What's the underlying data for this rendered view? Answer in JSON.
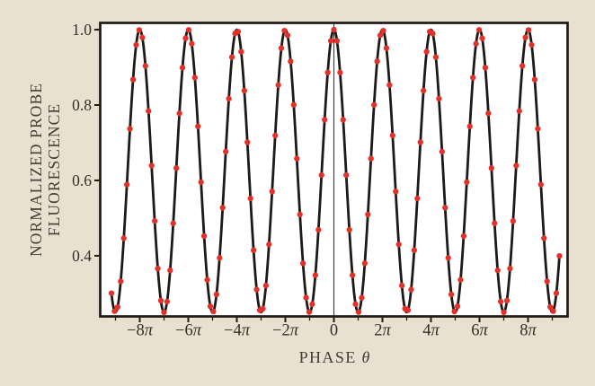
{
  "figure": {
    "background_color": "#eae0cf",
    "plot_background": "#ffffff",
    "frame_color": "#1d1a16",
    "curve_color": "#1d1a16",
    "dot_color": "#e43028",
    "zero_line_color": "#3a3733",
    "text_color": "#423d34",
    "tick_label_color": "#332e27"
  },
  "chart_data": {
    "type": "line+scatter",
    "title": "",
    "xlabel_main": "PHASE",
    "xlabel_symbol": "θ",
    "ylabel_lines": [
      "NORMALIZED PROBE",
      "FLUORESCENCE"
    ],
    "model": "y = offset + amplitude * cos(theta)",
    "offset": 0.625,
    "amplitude": 0.375,
    "period_rad": 6.2832,
    "theta_start_rad": -28.8,
    "theta_end_rad": 29.2,
    "sample_step_rad": 0.4,
    "data_max": 1.0,
    "data_min": 0.25,
    "xlim_pi": [
      -9.63,
      9.63
    ],
    "ylim": [
      0.239,
      1.018
    ],
    "zero_line_x_pi": 0,
    "grid": "off",
    "legend": "none",
    "x_ticks": [
      {
        "pi": -8,
        "prefix": "−8",
        "symbol": "π"
      },
      {
        "pi": -6,
        "prefix": "−6",
        "symbol": "π"
      },
      {
        "pi": -4,
        "prefix": "−4",
        "symbol": "π"
      },
      {
        "pi": -2,
        "prefix": "−2",
        "symbol": "π"
      },
      {
        "pi": 0,
        "prefix": "0",
        "symbol": ""
      },
      {
        "pi": 2,
        "prefix": "2",
        "symbol": "π"
      },
      {
        "pi": 4,
        "prefix": "4",
        "symbol": "π"
      },
      {
        "pi": 6,
        "prefix": "6",
        "symbol": "π"
      },
      {
        "pi": 8,
        "prefix": "8",
        "symbol": "π"
      }
    ],
    "x_minor_ticks_pi": [
      -9,
      -7,
      -5,
      -3,
      -1,
      1,
      3,
      5,
      7,
      9
    ],
    "y_ticks": [
      {
        "value": 1.0,
        "label": "1.0"
      },
      {
        "value": 0.8,
        "label": "0.8"
      },
      {
        "value": 0.6,
        "label": "0.6"
      },
      {
        "value": 0.4,
        "label": "0.4"
      }
    ]
  }
}
